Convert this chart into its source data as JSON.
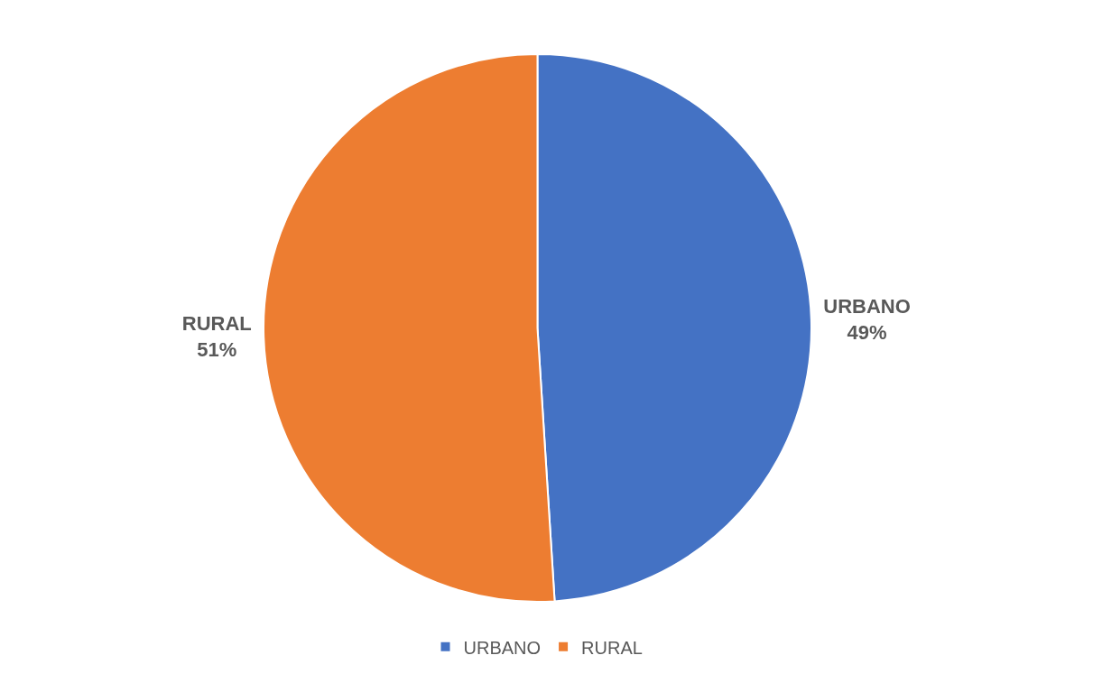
{
  "chart_data": {
    "type": "pie",
    "categories": [
      "URBANO",
      "RURAL"
    ],
    "values": [
      49,
      51
    ],
    "colors": [
      "#4472c4",
      "#ed7d31"
    ],
    "value_labels": [
      "49%",
      "51%"
    ],
    "legend": "bottom"
  }
}
